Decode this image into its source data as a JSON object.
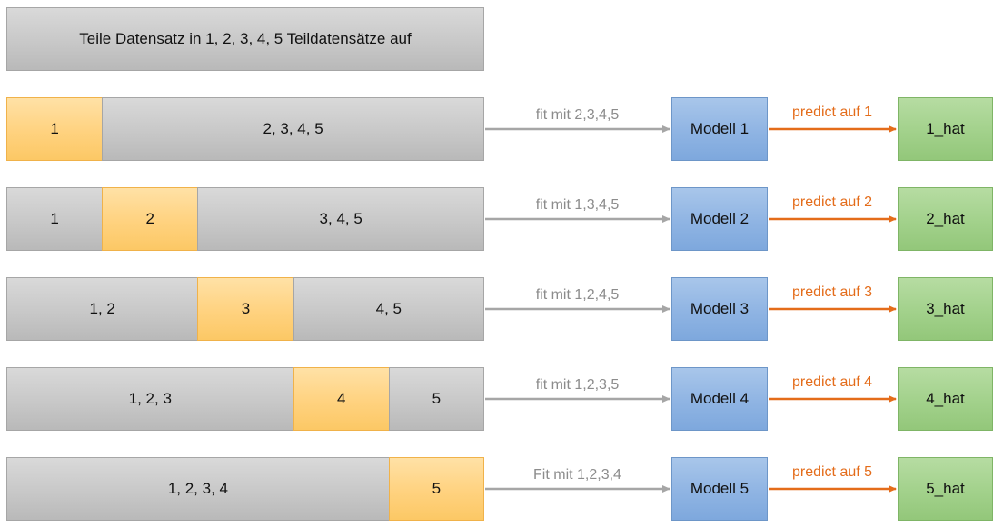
{
  "header": {
    "text": "Teile Datensatz in 1, 2, 3, 4, 5 Teildatensätze auf"
  },
  "colors": {
    "gray_segment": "#c8c8c8",
    "highlight_segment": "#ffd27f",
    "model_box": "#8fb4e3",
    "result_box": "#a2d18b",
    "fit_arrow": "#a6a6a6",
    "predict_arrow": "#e46c1a"
  },
  "rows": [
    {
      "segments": [
        {
          "label": "1",
          "highlight": true,
          "cells": 1
        },
        {
          "label": "2, 3, 4, 5",
          "highlight": false,
          "cells": 4
        }
      ],
      "fit_label": "fit mit 2,3,4,5",
      "model_label": "Modell 1",
      "predict_label": "predict auf 1",
      "result_label": "1_hat"
    },
    {
      "segments": [
        {
          "label": "1",
          "highlight": false,
          "cells": 1
        },
        {
          "label": "2",
          "highlight": true,
          "cells": 1
        },
        {
          "label": "3, 4, 5",
          "highlight": false,
          "cells": 3
        }
      ],
      "fit_label": "fit mit 1,3,4,5",
      "model_label": "Modell 2",
      "predict_label": "predict auf 2",
      "result_label": "2_hat"
    },
    {
      "segments": [
        {
          "label": "1, 2",
          "highlight": false,
          "cells": 2
        },
        {
          "label": "3",
          "highlight": true,
          "cells": 1
        },
        {
          "label": "4, 5",
          "highlight": false,
          "cells": 2
        }
      ],
      "fit_label": "fit mit 1,2,4,5",
      "model_label": "Modell 3",
      "predict_label": "predict auf 3",
      "result_label": "3_hat"
    },
    {
      "segments": [
        {
          "label": "1, 2, 3",
          "highlight": false,
          "cells": 3
        },
        {
          "label": "4",
          "highlight": true,
          "cells": 1
        },
        {
          "label": "5",
          "highlight": false,
          "cells": 1
        }
      ],
      "fit_label": "fit mit 1,2,3,5",
      "model_label": "Modell 4",
      "predict_label": "predict auf 4",
      "result_label": "4_hat"
    },
    {
      "segments": [
        {
          "label": "1, 2, 3, 4",
          "highlight": false,
          "cells": 4
        },
        {
          "label": "5",
          "highlight": true,
          "cells": 1
        }
      ],
      "fit_label": "Fit mit 1,2,3,4",
      "model_label": "Modell 5",
      "predict_label": "predict auf 5",
      "result_label": "5_hat"
    }
  ]
}
